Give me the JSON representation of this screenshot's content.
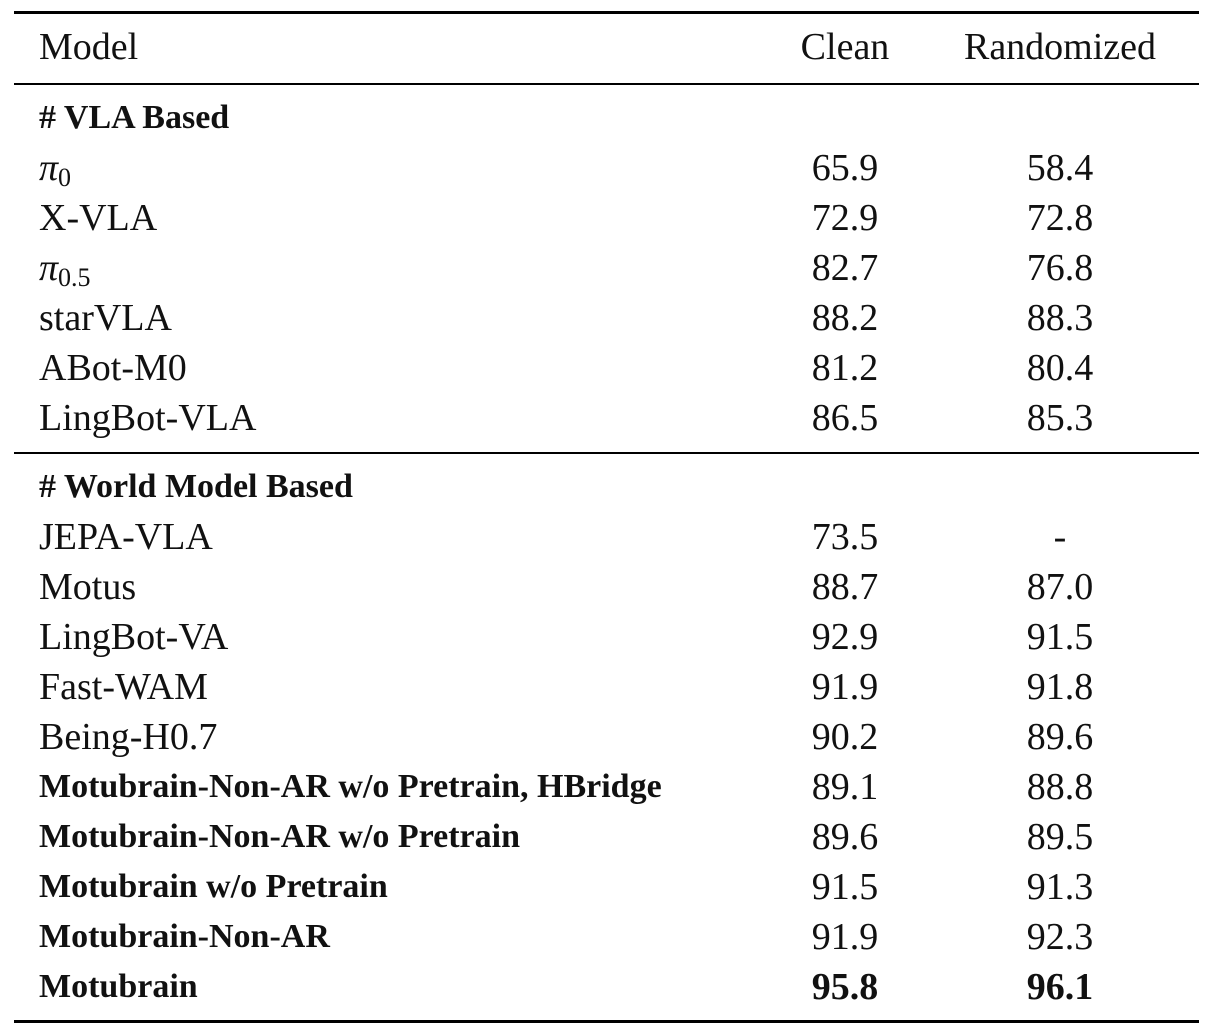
{
  "header": {
    "model": "Model",
    "clean": "Clean",
    "randomized": "Randomized"
  },
  "sections": [
    {
      "title": "# VLA Based",
      "rows": [
        {
          "model_main": "π",
          "model_sub": "0",
          "clean": "65.9",
          "randomized": "58.4"
        },
        {
          "model": "X-VLA",
          "clean": "72.9",
          "randomized": "72.8"
        },
        {
          "model_main": "π",
          "model_sub": "0.5",
          "clean": "82.7",
          "randomized": "76.8"
        },
        {
          "model": "starVLA",
          "clean": "88.2",
          "randomized": "88.3"
        },
        {
          "model": "ABot-M0",
          "clean": "81.2",
          "randomized": "80.4"
        },
        {
          "model": "LingBot-VLA",
          "clean": "86.5",
          "randomized": "85.3"
        }
      ]
    },
    {
      "title": "# World Model Based",
      "rows": [
        {
          "model": "JEPA-VLA",
          "clean": "73.5",
          "randomized": "-"
        },
        {
          "model": "Motus",
          "clean": "88.7",
          "randomized": "87.0"
        },
        {
          "model": "LingBot-VA",
          "clean": "92.9",
          "randomized": "91.5"
        },
        {
          "model": "Fast-WAM",
          "clean": "91.9",
          "randomized": "91.8"
        },
        {
          "model": "Being-H0.7",
          "clean": "90.2",
          "randomized": "89.6"
        },
        {
          "model": "Motubrain-Non-AR w/o Pretrain, HBridge",
          "clean": "89.1",
          "randomized": "88.8"
        },
        {
          "model": "Motubrain-Non-AR w/o Pretrain",
          "clean": "89.6",
          "randomized": "89.5"
        },
        {
          "model": "Motubrain w/o Pretrain",
          "clean": "91.5",
          "randomized": "91.3"
        },
        {
          "model": "Motubrain-Non-AR",
          "clean": "91.9",
          "randomized": "92.3"
        },
        {
          "model": "Motubrain",
          "clean": "95.8",
          "randomized": "96.1"
        }
      ]
    }
  ]
}
